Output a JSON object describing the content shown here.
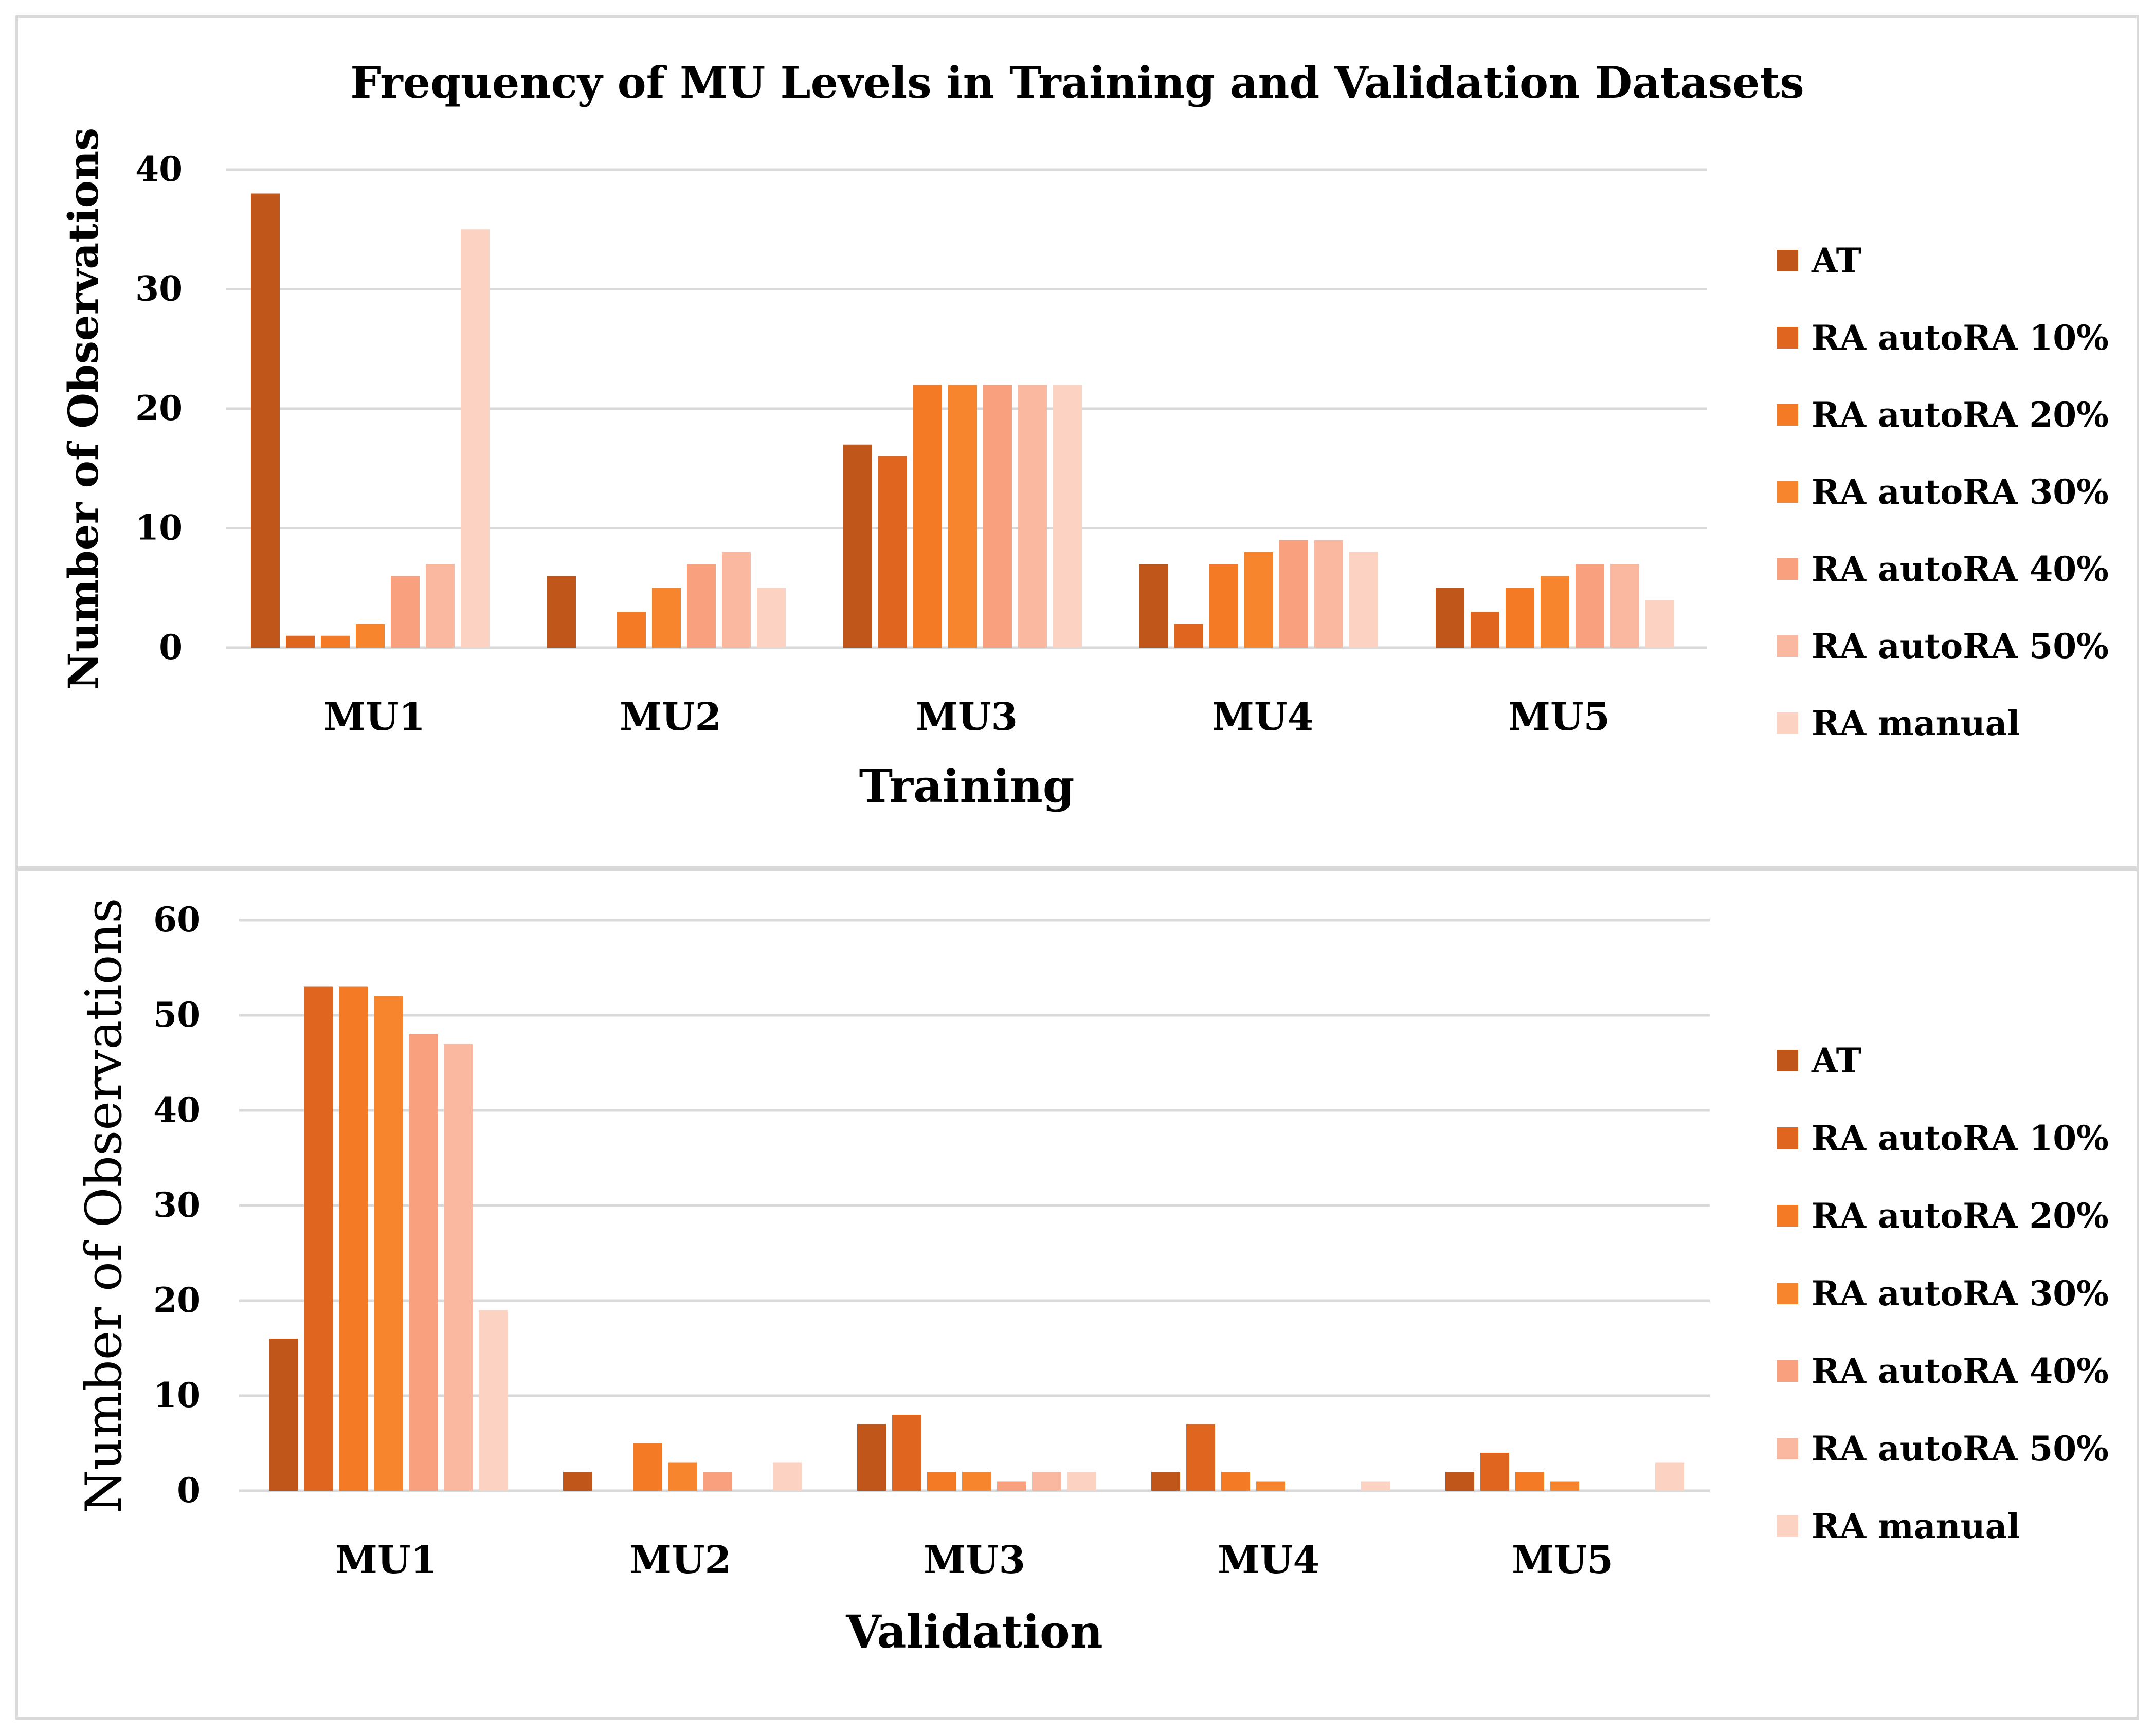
{
  "chart_data": [
    {
      "type": "bar",
      "title": "Frequency of MU Levels in Training and Validation Datasets",
      "xlabel": "Training",
      "ylabel": "Number of Observations",
      "ylim": [
        0,
        40
      ],
      "yticks": [
        0,
        10,
        20,
        30,
        40
      ],
      "grid": true,
      "legend_position": "right",
      "categories": [
        "MU1",
        "MU2",
        "MU3",
        "MU4",
        "MU5"
      ],
      "series": [
        {
          "name": "AT",
          "color": "#c0561a",
          "values": [
            38,
            6,
            17,
            7,
            5
          ]
        },
        {
          "name": "RA autoRA 10%",
          "color": "#e06620",
          "values": [
            1,
            0,
            16,
            2,
            3
          ]
        },
        {
          "name": "RA autoRA 20%",
          "color": "#f47a25",
          "values": [
            1,
            3,
            22,
            7,
            5
          ]
        },
        {
          "name": "RA autoRA 30%",
          "color": "#f6852e",
          "values": [
            2,
            5,
            22,
            8,
            6
          ]
        },
        {
          "name": "RA autoRA 40%",
          "color": "#f9a07f",
          "values": [
            6,
            7,
            22,
            9,
            7
          ]
        },
        {
          "name": "RA autoRA 50%",
          "color": "#fab8a0",
          "values": [
            7,
            8,
            22,
            9,
            7
          ]
        },
        {
          "name": "RA manual",
          "color": "#fcd2c3",
          "values": [
            35,
            5,
            22,
            8,
            4
          ]
        }
      ]
    },
    {
      "type": "bar",
      "title": "",
      "xlabel": "Validation",
      "ylabel": "Number of Observations",
      "ylim": [
        0,
        60
      ],
      "yticks": [
        0,
        10,
        20,
        30,
        40,
        50,
        60
      ],
      "grid": true,
      "legend_position": "right",
      "categories": [
        "MU1",
        "MU2",
        "MU3",
        "MU4",
        "MU5"
      ],
      "series": [
        {
          "name": "AT",
          "color": "#c0561a",
          "values": [
            16,
            2,
            7,
            2,
            2
          ]
        },
        {
          "name": "RA autoRA 10%",
          "color": "#e06620",
          "values": [
            53,
            0,
            8,
            7,
            4
          ]
        },
        {
          "name": "RA autoRA 20%",
          "color": "#f47a25",
          "values": [
            53,
            5,
            2,
            2,
            2
          ]
        },
        {
          "name": "RA autoRA 30%",
          "color": "#f6852e",
          "values": [
            52,
            3,
            2,
            1,
            1
          ]
        },
        {
          "name": "RA autoRA 40%",
          "color": "#f9a07f",
          "values": [
            48,
            2,
            1,
            0,
            0
          ]
        },
        {
          "name": "RA autoRA 50%",
          "color": "#fab8a0",
          "values": [
            47,
            0,
            2,
            0,
            0
          ]
        },
        {
          "name": "RA manual",
          "color": "#fcd2c3",
          "values": [
            19,
            3,
            2,
            1,
            3
          ]
        }
      ]
    }
  ]
}
